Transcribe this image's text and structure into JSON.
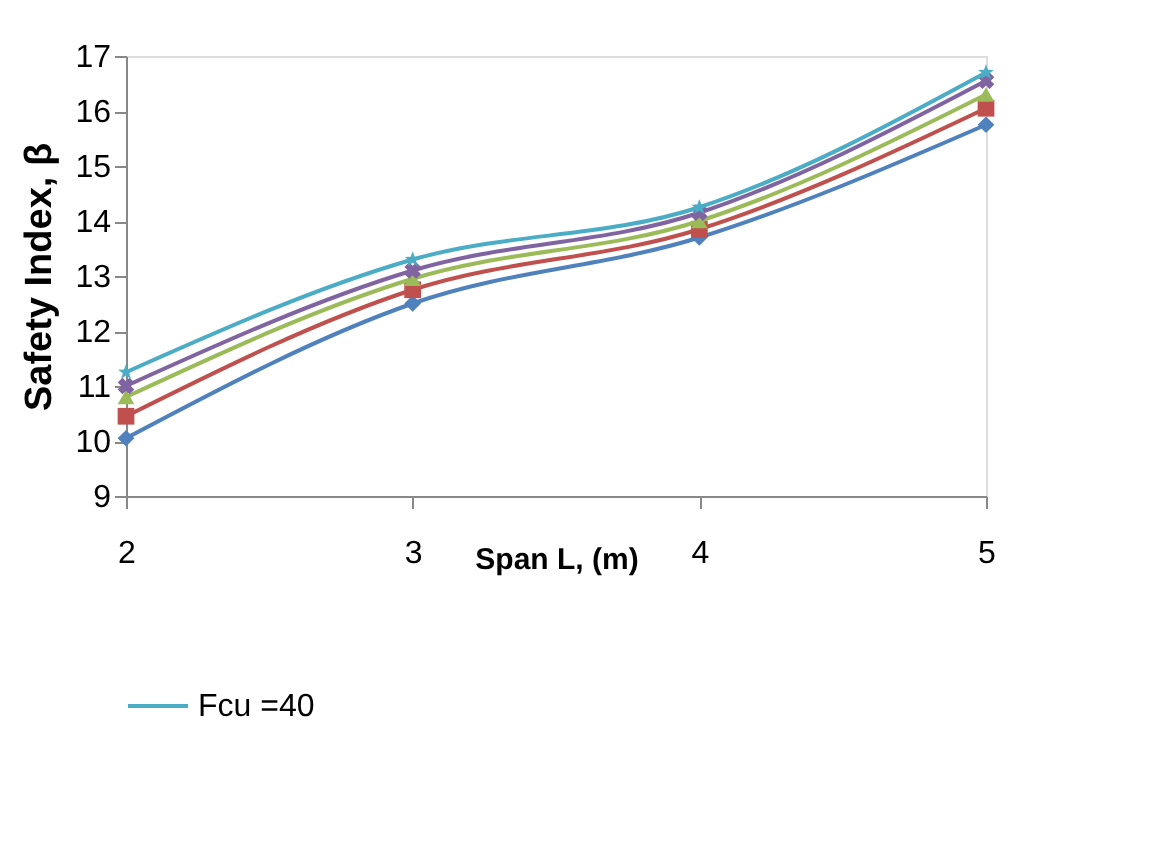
{
  "chart_data": {
    "type": "line",
    "xlabel": "Span L, (m)",
    "ylabel": "Safety Index, β",
    "x": [
      2,
      3,
      4,
      5
    ],
    "xlim": [
      2,
      5
    ],
    "xticks": [
      2,
      3,
      4,
      5
    ],
    "ylim": [
      9,
      17
    ],
    "yticks": [
      9,
      10,
      11,
      12,
      13,
      14,
      15,
      16,
      17
    ],
    "grid": false,
    "legend": "bottom",
    "series": [
      {
        "color": "#4f81bd",
        "marker": "diamond",
        "values": [
          10.05,
          12.5,
          13.7,
          15.75
        ]
      },
      {
        "color": "#c0504d",
        "marker": "square",
        "values": [
          10.45,
          12.75,
          13.85,
          16.05
        ]
      },
      {
        "color": "#9bbb59",
        "marker": "triangle",
        "values": [
          10.8,
          12.95,
          14.0,
          16.3
        ]
      },
      {
        "color": "#8064a2",
        "marker": "cross",
        "values": [
          11.0,
          13.1,
          14.15,
          16.55
        ]
      },
      {
        "name": "Fcu =40",
        "color": "#4bacc6",
        "marker": "star",
        "values": [
          11.25,
          13.3,
          14.25,
          16.7
        ]
      }
    ]
  }
}
